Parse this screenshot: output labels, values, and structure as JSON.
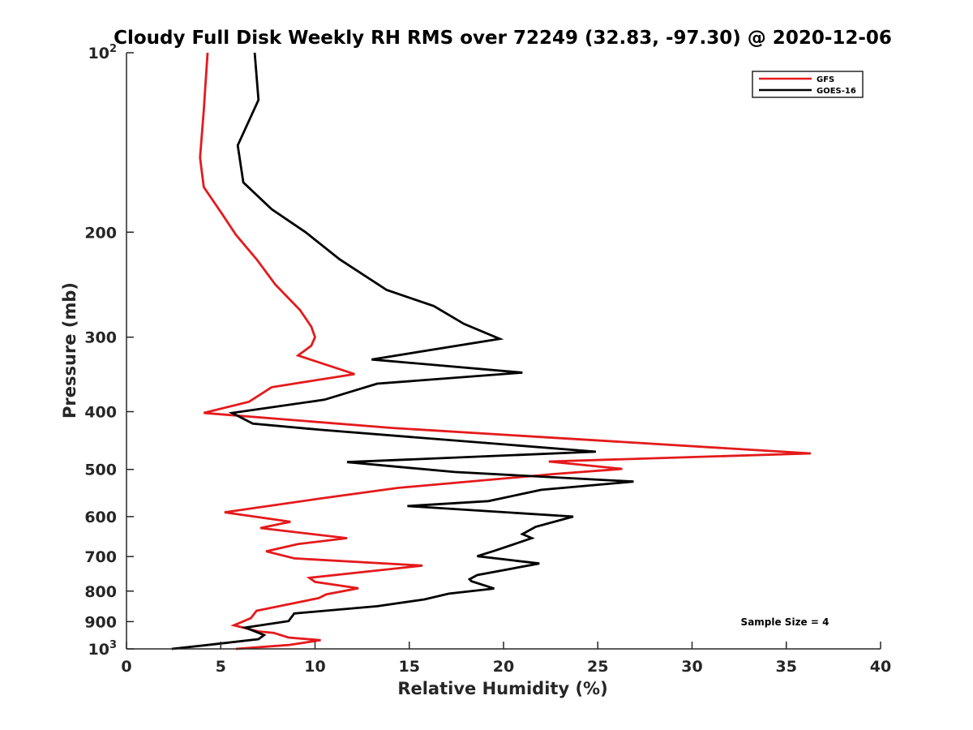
{
  "chart_data": {
    "type": "line",
    "title": "Cloudy Full Disk Weekly RH RMS over 72249 (32.83, -97.30) @ 2020-12-06",
    "xlabel": "Relative Humidity (%)",
    "ylabel": "Pressure (mb)",
    "xlim": [
      0,
      40
    ],
    "ylim": [
      100,
      1000
    ],
    "y_scale": "log",
    "y_reversed": true,
    "grid": false,
    "legend_position": "top-right",
    "x_ticks": [
      0,
      5,
      10,
      15,
      20,
      25,
      30,
      35,
      40
    ],
    "x_tick_labels": [
      "0",
      "5",
      "10",
      "15",
      "20",
      "25",
      "30",
      "35",
      "40"
    ],
    "y_ticks": [
      {
        "value": 100,
        "base": "10",
        "exp": "2"
      },
      {
        "value": 200,
        "label": "200"
      },
      {
        "value": 300,
        "label": "300"
      },
      {
        "value": 400,
        "label": "400"
      },
      {
        "value": 500,
        "label": "500"
      },
      {
        "value": 600,
        "label": "600"
      },
      {
        "value": 700,
        "label": "700"
      },
      {
        "value": 800,
        "label": "800"
      },
      {
        "value": 900,
        "label": "900"
      },
      {
        "value": 1000,
        "base": "10",
        "exp": "3"
      }
    ],
    "series": [
      {
        "name": "GFS",
        "color": "#e41a1c",
        "points": [
          [
            4.3,
            100
          ],
          [
            4.1,
            125
          ],
          [
            3.9,
            150
          ],
          [
            4.1,
            168
          ],
          [
            5.1,
            187
          ],
          [
            5.8,
            202
          ],
          [
            6.9,
            222
          ],
          [
            7.9,
            245
          ],
          [
            9.2,
            270
          ],
          [
            9.8,
            288
          ],
          [
            10.0,
            300
          ],
          [
            9.8,
            310
          ],
          [
            9.1,
            322
          ],
          [
            12.1,
            346
          ],
          [
            7.7,
            364
          ],
          [
            6.5,
            385
          ],
          [
            4.1,
            402
          ],
          [
            14.1,
            426
          ],
          [
            36.3,
            470
          ],
          [
            22.4,
            485
          ],
          [
            26.3,
            499
          ],
          [
            22.7,
            509
          ],
          [
            14.4,
            537
          ],
          [
            10.2,
            560
          ],
          [
            5.2,
            590
          ],
          [
            8.7,
            612
          ],
          [
            7.1,
            627
          ],
          [
            11.7,
            652
          ],
          [
            9.1,
            667
          ],
          [
            7.4,
            686
          ],
          [
            8.9,
            705
          ],
          [
            15.7,
            725
          ],
          [
            9.7,
            760
          ],
          [
            10.0,
            772
          ],
          [
            12.3,
            791
          ],
          [
            10.6,
            810
          ],
          [
            10.2,
            822
          ],
          [
            6.9,
            863
          ],
          [
            6.6,
            888
          ],
          [
            5.7,
            913
          ],
          [
            7.0,
            935
          ],
          [
            7.8,
            940
          ],
          [
            8.6,
            957
          ],
          [
            10.3,
            967
          ],
          [
            8.6,
            985
          ],
          [
            5.8,
            1000
          ]
        ]
      },
      {
        "name": "GOES-16",
        "color": "#000000",
        "points": [
          [
            6.8,
            100
          ],
          [
            7.0,
            120
          ],
          [
            5.9,
            143
          ],
          [
            6.2,
            165
          ],
          [
            7.7,
            183
          ],
          [
            9.5,
            200
          ],
          [
            11.3,
            222
          ],
          [
            13.8,
            250
          ],
          [
            16.3,
            266
          ],
          [
            17.9,
            285
          ],
          [
            19.8,
            302
          ],
          [
            13.0,
            327
          ],
          [
            21.0,
            344
          ],
          [
            13.3,
            359
          ],
          [
            10.5,
            382
          ],
          [
            5.6,
            402
          ],
          [
            6.7,
            419
          ],
          [
            10.3,
            429
          ],
          [
            24.9,
            467
          ],
          [
            11.7,
            486
          ],
          [
            17.4,
            505
          ],
          [
            26.9,
            524
          ],
          [
            22.0,
            541
          ],
          [
            19.2,
            565
          ],
          [
            14.9,
            576
          ],
          [
            23.7,
            600
          ],
          [
            21.7,
            624
          ],
          [
            21.0,
            642
          ],
          [
            21.5,
            652
          ],
          [
            19.5,
            685
          ],
          [
            18.6,
            699
          ],
          [
            21.9,
            719
          ],
          [
            18.6,
            752
          ],
          [
            18.2,
            764
          ],
          [
            18.3,
            770
          ],
          [
            19.5,
            792
          ],
          [
            17.1,
            808
          ],
          [
            15.8,
            826
          ],
          [
            13.3,
            848
          ],
          [
            8.9,
            872
          ],
          [
            8.6,
            898
          ],
          [
            6.3,
            921
          ],
          [
            7.3,
            948
          ],
          [
            7.0,
            963
          ],
          [
            4.3,
            985
          ],
          [
            2.4,
            1000
          ]
        ]
      }
    ],
    "annotations": [
      {
        "text": "Sample Size = 4",
        "position": "bottom-right"
      }
    ]
  }
}
